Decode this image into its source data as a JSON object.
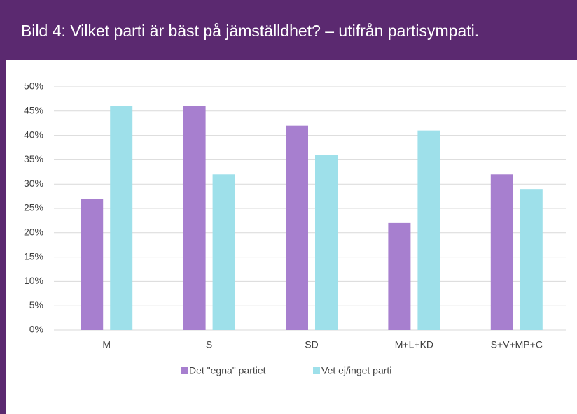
{
  "chart_data": {
    "type": "bar",
    "title": "Bild 4: Vilket parti är bäst på jämställdhet? – utifrån partisympati.",
    "categories": [
      "M",
      "S",
      "SD",
      "M+L+KD",
      "S+V+MP+C"
    ],
    "series": [
      {
        "name": "Det \"egna\" partiet",
        "color": "#a77fcf",
        "values": [
          27,
          46,
          42,
          22,
          32
        ]
      },
      {
        "name": "Vet ej/inget parti",
        "color": "#9ee0ea",
        "values": [
          46,
          32,
          36,
          41,
          29
        ]
      }
    ],
    "ylim": [
      0,
      50
    ],
    "yticks": [
      {
        "value": 0,
        "label": "0%"
      },
      {
        "value": 5,
        "label": "5%"
      },
      {
        "value": 10,
        "label": "10%"
      },
      {
        "value": 15,
        "label": "15%"
      },
      {
        "value": 20,
        "label": "20%"
      },
      {
        "value": 25,
        "label": "25%"
      },
      {
        "value": 30,
        "label": "30%"
      },
      {
        "value": 35,
        "label": "35%"
      },
      {
        "value": 40,
        "label": "40%"
      },
      {
        "value": 45,
        "label": "45%"
      },
      {
        "value": 50,
        "label": "50%"
      }
    ],
    "grid": true,
    "legend": "bottom"
  }
}
